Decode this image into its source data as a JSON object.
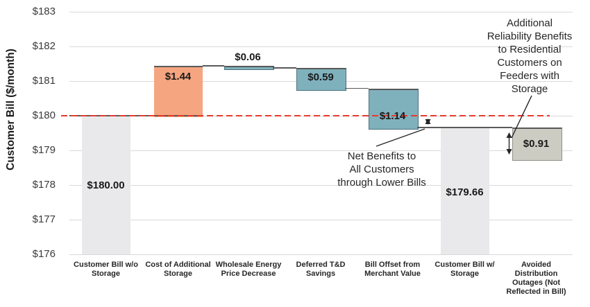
{
  "chart_data": {
    "type": "bar",
    "subtype": "waterfall",
    "title": "",
    "xlabel": "",
    "ylabel": "Customer Bill ($/month)",
    "ylim": [
      176,
      183
    ],
    "grid": true,
    "legend": null,
    "y_ticks": [
      {
        "label": "$183",
        "value": 183
      },
      {
        "label": "$182",
        "value": 182
      },
      {
        "label": "$181",
        "value": 181
      },
      {
        "label": "$180",
        "value": 180
      },
      {
        "label": "$179",
        "value": 179
      },
      {
        "label": "$178",
        "value": 178
      },
      {
        "label": "$177",
        "value": 177
      },
      {
        "label": "$176",
        "value": 176
      }
    ],
    "bars": [
      {
        "category": "Customer Bill w/o Storage",
        "category_lines": "Customer Bill w/o\nStorage",
        "base": 176,
        "top": 180,
        "value_label": "$180.00",
        "kind": "total"
      },
      {
        "category": "Cost of Additional Storage",
        "category_lines": "Cost of Additional\nStorage",
        "base": 180,
        "top": 181.44,
        "value_label": "$1.44",
        "kind": "increase"
      },
      {
        "category": "Wholesale Energy Price Decrease",
        "category_lines": "Wholesale Energy\nPrice Decrease",
        "base": 181.38,
        "top": 181.44,
        "value_label": "$0.06",
        "kind": "decrease"
      },
      {
        "category": "Deferred T&D Savings",
        "category_lines": "Deferred T&D\nSavings",
        "base": 180.79,
        "top": 181.38,
        "value_label": "$0.59",
        "kind": "decrease"
      },
      {
        "category": "Bill Offset from Merchant Value",
        "category_lines": "Bill Offset from\nMerchant Value",
        "base": 179.66,
        "top": 180.79,
        "value_label": "$1.14",
        "kind": "decrease"
      },
      {
        "category": "Customer Bill w/ Storage",
        "category_lines": "Customer Bill w/\nStorage",
        "base": 176,
        "top": 179.66,
        "value_label": "$179.66",
        "kind": "total"
      },
      {
        "category": "Avoided Distribution Outages (Not Reflected in Bill)",
        "category_lines": "Avoided\nDistribution\nOutages (Not\nReflected in Bill)",
        "base": 178.75,
        "top": 179.66,
        "value_label": "$0.91",
        "kind": "offbill"
      }
    ],
    "reference_line": {
      "value": 180,
      "style": "dashed",
      "color": "#E8392B"
    },
    "annotations": [
      {
        "id": "net-benefits",
        "text": "Net Benefits to\nAll Customers\nthrough Lower Bills"
      },
      {
        "id": "reliability",
        "text": "Additional\nReliability Benefits\nto Residential\nCustomers on\nFeeders with\nStorage"
      }
    ],
    "colors": {
      "total": "#E9E9EB",
      "increase": "#F5A57F",
      "decrease": "#7FB1BD",
      "offbill": "#CDCCC3",
      "grid": "#D9D9D9",
      "connector": "#595959",
      "reference": "#E8392B",
      "annotation_line": "#262626"
    }
  }
}
